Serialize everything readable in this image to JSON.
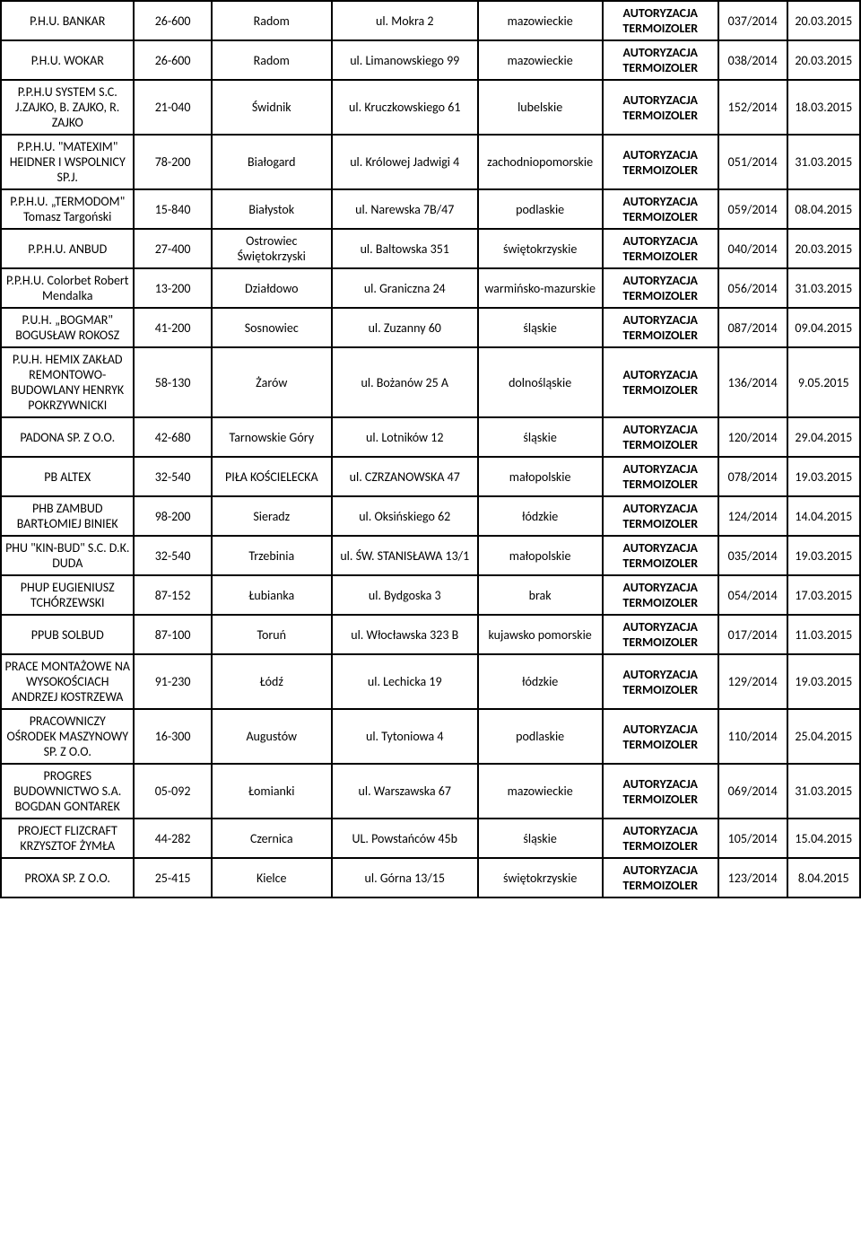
{
  "table": {
    "columns": [
      {
        "key": "company",
        "class": "col-company"
      },
      {
        "key": "postal",
        "class": "col-postal"
      },
      {
        "key": "city",
        "class": "col-city"
      },
      {
        "key": "address",
        "class": "col-address"
      },
      {
        "key": "region",
        "class": "col-region"
      },
      {
        "key": "cert",
        "class": "col-cert"
      },
      {
        "key": "num",
        "class": "col-num"
      },
      {
        "key": "date",
        "class": "col-date"
      }
    ],
    "cert_text": {
      "line1": "AUTORYZACJA",
      "line2": "TERMOIZOLER"
    },
    "rows": [
      {
        "company": "P.H.U. BANKAR",
        "postal": "26-600",
        "city": "Radom",
        "address": "ul. Mokra 2",
        "region": "mazowieckie",
        "num": "037/2014",
        "date": "20.03.2015"
      },
      {
        "company": "P.H.U. WOKAR",
        "postal": "26-600",
        "city": "Radom",
        "address": "ul. Limanowskiego 99",
        "region": "mazowieckie",
        "num": "038/2014",
        "date": "20.03.2015"
      },
      {
        "company": "P.P.H.U SYSTEM S.C. J.ZAJKO, B. ZAJKO, R. ZAJKO",
        "postal": "21-040",
        "city": "Świdnik",
        "address": "ul. Kruczkowskiego 61",
        "region": "lubelskie",
        "num": "152/2014",
        "date": "18.03.2015"
      },
      {
        "company": "P.P.H.U. \"MATEXIM\" HEIDNER I WSPOLNICY SP.J.",
        "postal": "78-200",
        "city": "Białogard",
        "address": "ul. Królowej Jadwigi 4",
        "region": "zachodniopomorskie",
        "num": "051/2014",
        "date": "31.03.2015"
      },
      {
        "company": "P.P.H.U. „TERMODOM\" Tomasz Targoński",
        "postal": "15-840",
        "city": "Białystok",
        "address": "ul. Narewska 7B/47",
        "region": "podlaskie",
        "num": "059/2014",
        "date": "08.04.2015"
      },
      {
        "company": "P.P.H.U. ANBUD",
        "postal": "27-400",
        "city": "Ostrowiec Świętokrzyski",
        "address": "ul. Baltowska 351",
        "region": "świętokrzyskie",
        "num": "040/2014",
        "date": "20.03.2015"
      },
      {
        "company": "P.P.H.U. Colorbet Robert Mendalka",
        "postal": "13-200",
        "city": "Działdowo",
        "address": "ul. Graniczna 24",
        "region": "warmińsko-mazurskie",
        "num": "056/2014",
        "date": "31.03.2015"
      },
      {
        "company": "P.U.H. „BOGMAR\" BOGUSŁAW ROKOSZ",
        "postal": "41-200",
        "city": "Sosnowiec",
        "address": "ul. Zuzanny 60",
        "region": "śląskie",
        "num": "087/2014",
        "date": "09.04.2015"
      },
      {
        "company": "P.U.H. HEMIX ZAKŁAD REMONTOWO-BUDOWLANY HENRYK POKRZYWNICKI",
        "postal": "58-130",
        "city": "Żarów",
        "address": "ul. Bożanów 25 A",
        "region": "dolnośląskie",
        "num": "136/2014",
        "date": "9.05.2015"
      },
      {
        "company": "PADONA SP. Z O.O.",
        "postal": "42-680",
        "city": "Tarnowskie Góry",
        "address": "ul. Lotników 12",
        "region": "śląskie",
        "num": "120/2014",
        "date": "29.04.2015"
      },
      {
        "company": "PB ALTEX",
        "postal": "32-540",
        "city": "PIŁA KOŚCIELECKA",
        "address": "ul. CZRZANOWSKA 47",
        "region": "małopolskie",
        "num": "078/2014",
        "date": "19.03.2015"
      },
      {
        "company": "PHB ZAMBUD BARTŁOMIEJ BINIEK",
        "postal": "98-200",
        "city": "Sieradz",
        "address": "ul. Oksińskiego 62",
        "region": "łódzkie",
        "num": "124/2014",
        "date": "14.04.2015"
      },
      {
        "company": "PHU \"KIN-BUD\" S.C. D.K. DUDA",
        "postal": "32-540",
        "city": "Trzebinia",
        "address": "ul. ŚW. STANISŁAWA 13/1",
        "region": "małopolskie",
        "num": "035/2014",
        "date": "19.03.2015"
      },
      {
        "company": "PHUP EUGIENIUSZ TCHÓRZEWSKI",
        "postal": "87-152",
        "city": "Łubianka",
        "address": "ul. Bydgoska 3",
        "region": "brak",
        "num": "054/2014",
        "date": "17.03.2015"
      },
      {
        "company": "PPUB SOLBUD",
        "postal": "87-100",
        "city": "Toruń",
        "address": "ul. Włocławska 323 B",
        "region": "kujawsko pomorskie",
        "num": "017/2014",
        "date": "11.03.2015"
      },
      {
        "company": "PRACE MONTAŻOWE NA WYSOKOŚCIACH ANDRZEJ KOSTRZEWA",
        "postal": "91-230",
        "city": "Łódź",
        "address": "ul. Lechicka 19",
        "region": "łódzkie",
        "num": "129/2014",
        "date": "19.03.2015"
      },
      {
        "company": "PRACOWNICZY OŚRODEK MASZYNOWY SP. Z O.O.",
        "postal": "16-300",
        "city": "Augustów",
        "address": "ul. Tytoniowa 4",
        "region": "podlaskie",
        "num": "110/2014",
        "date": "25.04.2015"
      },
      {
        "company": "PROGRES BUDOWNICTWO S.A. BOGDAN GONTAREK",
        "postal": "05-092",
        "city": "Łomianki",
        "address": "ul. Warszawska 67",
        "region": "mazowieckie",
        "num": "069/2014",
        "date": "31.03.2015"
      },
      {
        "company": "PROJECT FLIZCRAFT KRZYSZTOF ŻYMŁA",
        "postal": "44-282",
        "city": "Czernica",
        "address": "UL. Powstańców 45b",
        "region": "śląskie",
        "num": "105/2014",
        "date": "15.04.2015"
      },
      {
        "company": "PROXA SP. Z O.O.",
        "postal": "25-415",
        "city": "Kielce",
        "address": "ul. Górna 13/15",
        "region": "świętokrzyskie",
        "num": "123/2014",
        "date": "8.04.2015"
      }
    ]
  },
  "style": {
    "border_color": "#000000",
    "border_width": 2,
    "background_color": "#ffffff",
    "font_color": "#000000",
    "font_size": 14,
    "cert_font_weight": "bold"
  }
}
